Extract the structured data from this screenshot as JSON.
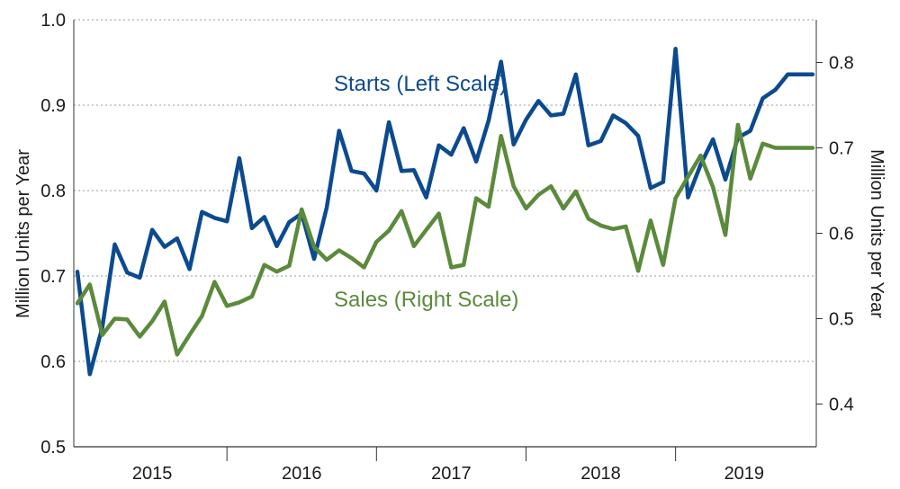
{
  "chart_data": {
    "type": "line",
    "x_ticks": [
      "2015",
      "2016",
      "2017",
      "2018",
      "2019"
    ],
    "ylabel_left": "Million Units  per Year",
    "ylabel_right": "Million Units  per Year",
    "yticks_left": [
      "0.5",
      "0.6",
      "0.7",
      "0.8",
      "0.9",
      "1.0"
    ],
    "yticks_right": [
      "0.4",
      "0.5",
      "0.6",
      "0.7",
      "0.8"
    ],
    "ylim_left": [
      0.5,
      1.0
    ],
    "ylim_right": [
      0.35,
      0.85
    ],
    "xlim": [
      2015.0,
      2019.917
    ],
    "grid": true,
    "series": [
      {
        "name": "Starts (Left Scale)",
        "axis": "left",
        "color": "#0c4a8f",
        "x": [
          2015.0,
          2015.083,
          2015.167,
          2015.25,
          2015.333,
          2015.417,
          2015.5,
          2015.583,
          2015.667,
          2015.75,
          2015.833,
          2015.917,
          2016.0,
          2016.083,
          2016.167,
          2016.25,
          2016.333,
          2016.417,
          2016.5,
          2016.583,
          2016.667,
          2016.75,
          2016.833,
          2016.917,
          2017.0,
          2017.083,
          2017.167,
          2017.25,
          2017.333,
          2017.417,
          2017.5,
          2017.583,
          2017.667,
          2017.75,
          2017.833,
          2017.917,
          2018.0,
          2018.083,
          2018.167,
          2018.25,
          2018.333,
          2018.417,
          2018.5,
          2018.583,
          2018.667,
          2018.75,
          2018.833,
          2018.917,
          2019.0,
          2019.083,
          2019.167,
          2019.25,
          2019.333,
          2019.417,
          2019.5,
          2019.583,
          2019.667,
          2019.75,
          2019.833,
          2019.917
        ],
        "y": [
          0.705,
          0.585,
          0.64,
          0.737,
          0.704,
          0.698,
          0.754,
          0.734,
          0.744,
          0.708,
          0.775,
          0.768,
          0.764,
          0.838,
          0.756,
          0.769,
          0.735,
          0.763,
          0.773,
          0.72,
          0.78,
          0.87,
          0.823,
          0.82,
          0.8,
          0.88,
          0.823,
          0.824,
          0.792,
          0.853,
          0.842,
          0.873,
          0.834,
          0.882,
          0.951,
          0.854,
          0.883,
          0.905,
          0.888,
          0.89,
          0.936,
          0.853,
          0.858,
          0.888,
          0.879,
          0.864,
          0.803,
          0.81,
          0.966,
          0.792,
          0.83,
          0.86,
          0.813,
          0.862,
          0.87,
          0.908,
          0.918,
          0.936,
          0.936,
          0.936
        ]
      },
      {
        "name": "Sales (Right Scale)",
        "axis": "right",
        "color": "#5b8a3c",
        "x": [
          2015.0,
          2015.083,
          2015.167,
          2015.25,
          2015.333,
          2015.417,
          2015.5,
          2015.583,
          2015.667,
          2015.75,
          2015.833,
          2015.917,
          2016.0,
          2016.083,
          2016.167,
          2016.25,
          2016.333,
          2016.417,
          2016.5,
          2016.583,
          2016.667,
          2016.75,
          2016.833,
          2016.917,
          2017.0,
          2017.083,
          2017.167,
          2017.25,
          2017.333,
          2017.417,
          2017.5,
          2017.583,
          2017.667,
          2017.75,
          2017.833,
          2017.917,
          2018.0,
          2018.083,
          2018.167,
          2018.25,
          2018.333,
          2018.417,
          2018.5,
          2018.583,
          2018.667,
          2018.75,
          2018.833,
          2018.917,
          2019.0,
          2019.083,
          2019.167,
          2019.25,
          2019.333,
          2019.417,
          2019.5,
          2019.583,
          2019.667,
          2019.75,
          2019.833,
          2019.917
        ],
        "y": [
          0.518,
          0.54,
          0.481,
          0.5,
          0.499,
          0.479,
          0.497,
          0.52,
          0.458,
          0.481,
          0.503,
          0.543,
          0.515,
          0.519,
          0.526,
          0.563,
          0.555,
          0.562,
          0.628,
          0.584,
          0.569,
          0.58,
          0.571,
          0.56,
          0.59,
          0.603,
          0.626,
          0.585,
          0.604,
          0.623,
          0.56,
          0.563,
          0.641,
          0.631,
          0.714,
          0.655,
          0.629,
          0.645,
          0.655,
          0.629,
          0.649,
          0.617,
          0.609,
          0.605,
          0.608,
          0.556,
          0.615,
          0.563,
          0.641,
          0.666,
          0.691,
          0.654,
          0.598,
          0.727,
          0.664,
          0.705,
          0.7,
          0.7,
          0.7,
          0.7
        ]
      }
    ],
    "annotations": [
      {
        "text": "Starts (Left Scale)",
        "series": 0
      },
      {
        "text": "Sales (Right Scale)",
        "series": 1
      }
    ]
  }
}
